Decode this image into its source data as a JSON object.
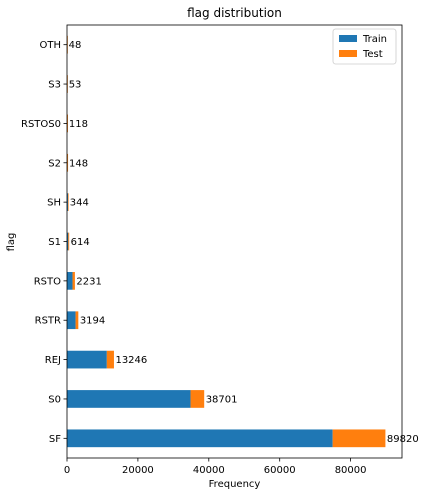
{
  "chart_data": {
    "type": "bar",
    "orientation": "horizontal",
    "stacked": true,
    "title": "flag distribution",
    "xlabel": "Frequency",
    "ylabel": "flag",
    "categories": [
      "SF",
      "S0",
      "REJ",
      "RSTR",
      "RSTO",
      "S1",
      "SH",
      "S2",
      "RSTOS0",
      "S3",
      "OTH"
    ],
    "series": [
      {
        "name": "Train",
        "color": "#1f77b4",
        "values": [
          74945,
          34851,
          11233,
          2421,
          1562,
          365,
          271,
          127,
          103,
          49,
          46
        ]
      },
      {
        "name": "Test",
        "color": "#ff7f0e",
        "values": [
          14875,
          3850,
          2013,
          773,
          669,
          249,
          73,
          21,
          15,
          4,
          2
        ]
      }
    ],
    "data_labels": [
      "89820",
      "38701",
      "13246",
      "3194",
      "2231",
      "614",
      "344",
      "148",
      "118",
      "53",
      "48"
    ],
    "xlim": [
      0,
      94500
    ],
    "xticks": [
      0,
      20000,
      40000,
      60000,
      80000
    ],
    "xtick_labels": [
      "0",
      "20000",
      "40000",
      "60000",
      "80000"
    ],
    "grid": false,
    "legend": "top-right"
  }
}
